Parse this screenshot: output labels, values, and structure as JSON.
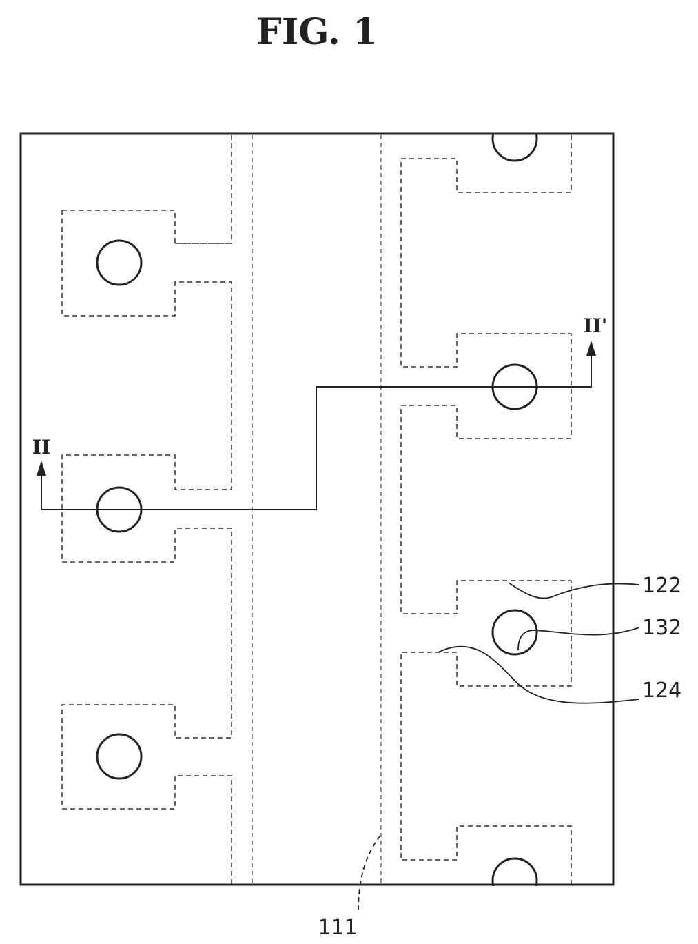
{
  "figure": {
    "title": "FIG.  1",
    "section_start_label": "II",
    "section_end_label": "II'",
    "reference_numerals": {
      "line": "111",
      "gate_pad": "122",
      "via_hole": "132",
      "data_pad": "124"
    }
  }
}
